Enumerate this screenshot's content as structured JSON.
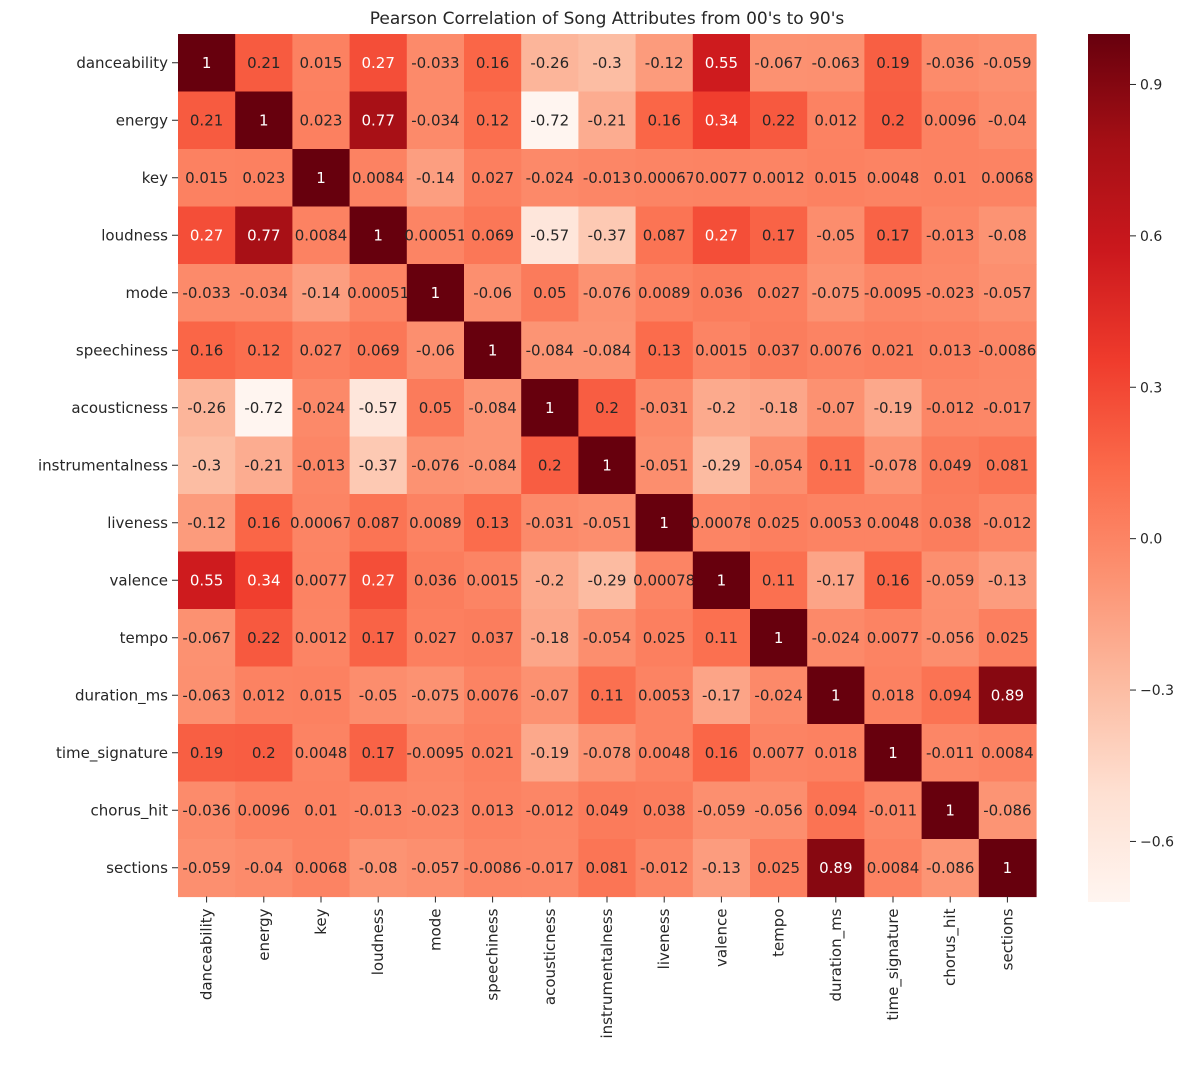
{
  "chart_data": {
    "type": "heatmap",
    "title": "Pearson Correlation of Song Attributes from 00's to 90's",
    "labels": [
      "danceability",
      "energy",
      "key",
      "loudness",
      "mode",
      "speechiness",
      "acousticness",
      "instrumentalness",
      "liveness",
      "valence",
      "tempo",
      "duration_ms",
      "time_signature",
      "chorus_hit",
      "sections"
    ],
    "matrix": [
      [
        1,
        0.21,
        0.015,
        0.27,
        -0.033,
        0.16,
        -0.26,
        -0.3,
        -0.12,
        0.55,
        -0.067,
        -0.063,
        0.19,
        -0.036,
        -0.059
      ],
      [
        0.21,
        1,
        0.023,
        0.77,
        -0.034,
        0.12,
        -0.72,
        -0.21,
        0.16,
        0.34,
        0.22,
        0.012,
        0.2,
        0.0096,
        -0.04
      ],
      [
        0.015,
        0.023,
        1,
        0.0084,
        -0.14,
        0.027,
        -0.024,
        -0.013,
        0.00067,
        0.0077,
        0.0012,
        0.015,
        0.0048,
        0.01,
        0.0068
      ],
      [
        0.27,
        0.77,
        0.0084,
        1,
        0.00051,
        0.069,
        -0.57,
        -0.37,
        0.087,
        0.27,
        0.17,
        -0.05,
        0.17,
        -0.013,
        -0.08
      ],
      [
        -0.033,
        -0.034,
        -0.14,
        0.00051,
        1,
        -0.06,
        0.05,
        -0.076,
        0.0089,
        0.036,
        0.027,
        -0.075,
        -0.0095,
        -0.023,
        -0.057
      ],
      [
        0.16,
        0.12,
        0.027,
        0.069,
        -0.06,
        1,
        -0.084,
        -0.084,
        0.13,
        0.0015,
        0.037,
        0.0076,
        0.021,
        0.013,
        -0.0086
      ],
      [
        -0.26,
        -0.72,
        -0.024,
        -0.57,
        0.05,
        -0.084,
        1,
        0.2,
        -0.031,
        -0.2,
        -0.18,
        -0.07,
        -0.19,
        -0.012,
        -0.017
      ],
      [
        -0.3,
        -0.21,
        -0.013,
        -0.37,
        -0.076,
        -0.084,
        0.2,
        1,
        -0.051,
        -0.29,
        -0.054,
        0.11,
        -0.078,
        0.049,
        0.081
      ],
      [
        -0.12,
        0.16,
        0.00067,
        0.087,
        0.0089,
        0.13,
        -0.031,
        -0.051,
        1,
        0.00078,
        0.025,
        0.0053,
        0.0048,
        0.038,
        -0.012
      ],
      [
        0.55,
        0.34,
        0.0077,
        0.27,
        0.036,
        0.0015,
        -0.2,
        -0.29,
        0.00078,
        1,
        0.11,
        -0.17,
        0.16,
        -0.059,
        -0.13
      ],
      [
        -0.067,
        0.22,
        0.0012,
        0.17,
        0.027,
        0.037,
        -0.18,
        -0.054,
        0.025,
        0.11,
        1,
        -0.024,
        0.0077,
        -0.056,
        0.025
      ],
      [
        -0.063,
        0.012,
        0.015,
        -0.05,
        -0.075,
        0.0076,
        -0.07,
        0.11,
        0.0053,
        -0.17,
        -0.024,
        1,
        0.018,
        0.094,
        0.89
      ],
      [
        0.19,
        0.2,
        0.0048,
        0.17,
        -0.0095,
        0.021,
        -0.19,
        -0.078,
        0.0048,
        0.16,
        0.0077,
        0.018,
        1,
        -0.011,
        0.0084
      ],
      [
        -0.036,
        0.0096,
        0.01,
        -0.013,
        -0.023,
        0.013,
        -0.012,
        0.049,
        0.038,
        -0.059,
        -0.056,
        0.094,
        -0.011,
        1,
        -0.086
      ],
      [
        -0.059,
        -0.04,
        0.0068,
        -0.08,
        -0.057,
        -0.0086,
        -0.017,
        0.081,
        -0.012,
        -0.13,
        0.025,
        0.89,
        0.0084,
        -0.086,
        1
      ]
    ],
    "vmin": -0.72,
    "vmax": 1,
    "colormap": "Reds",
    "colorbar_ticks": [
      0.9,
      0.6,
      0.3,
      0.0,
      -0.3,
      -0.6
    ],
    "colorbar_tick_labels": [
      "0.9",
      "0.6",
      "0.3",
      "0.0",
      "−0.3",
      "−0.6"
    ],
    "annotations": true
  }
}
